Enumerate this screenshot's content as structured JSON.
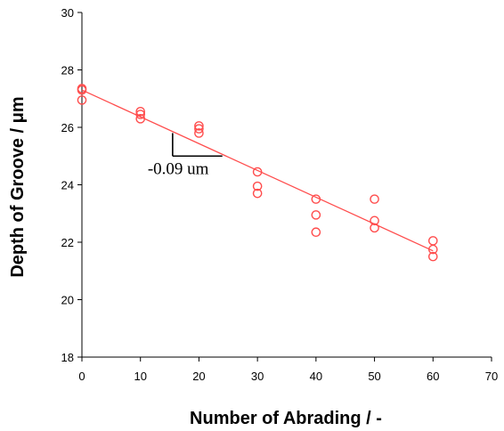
{
  "chart_data": {
    "type": "scatter",
    "xlabel": "Number of Abrading / -",
    "ylabel": "Depth of Groove / μm",
    "xlim": [
      0,
      70
    ],
    "ylim": [
      18,
      30
    ],
    "xticks": [
      "0",
      "10",
      "20",
      "30",
      "40",
      "50",
      "60",
      "70"
    ],
    "yticks": [
      "18",
      "20",
      "22",
      "24",
      "26",
      "28",
      "30"
    ],
    "grid": false,
    "legend": "none",
    "marker_color": "#ff4d4d",
    "trendline": {
      "color": "#ff4d4d",
      "start": [
        0,
        27.3
      ],
      "end": [
        60,
        21.7
      ]
    },
    "annotation": {
      "text": "-0.09 um",
      "slope_triangle": {
        "corner": [
          15.5,
          25.0
        ],
        "top_y": 25.8,
        "end_x": 24.0
      }
    },
    "series": [
      {
        "points": [
          [
            0,
            27.35
          ],
          [
            0,
            27.3
          ],
          [
            0,
            26.95
          ],
          [
            10,
            26.55
          ],
          [
            10,
            26.45
          ],
          [
            10,
            26.3
          ],
          [
            20,
            26.05
          ],
          [
            20,
            25.95
          ],
          [
            20,
            25.8
          ],
          [
            30,
            24.45
          ],
          [
            30,
            23.95
          ],
          [
            30,
            23.7
          ],
          [
            40,
            23.5
          ],
          [
            40,
            22.95
          ],
          [
            40,
            22.35
          ],
          [
            50,
            23.5
          ],
          [
            50,
            22.75
          ],
          [
            50,
            22.5
          ],
          [
            60,
            22.05
          ],
          [
            60,
            21.75
          ],
          [
            60,
            21.5
          ]
        ]
      }
    ]
  }
}
